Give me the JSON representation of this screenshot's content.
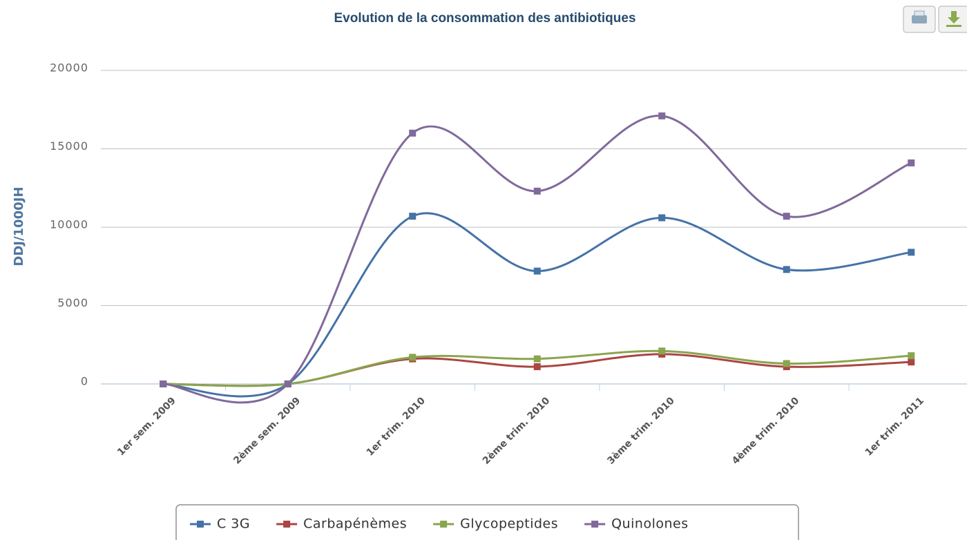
{
  "chart_data": {
    "type": "line",
    "title": "Evolution de la consommation des antibiotiques",
    "y_label": "DDJ/1000JH",
    "categories": [
      "1er sem. 2009",
      "2ème sem. 2009",
      "1er trim. 2010",
      "2ème trim. 2010",
      "3ème trim. 2010",
      "4ème trim. 2010",
      "1er trim. 2011"
    ],
    "series": [
      {
        "name": "C 3G",
        "color": "#4572A7",
        "values": [
          0,
          0,
          10700,
          7200,
          10600,
          7300,
          8400
        ]
      },
      {
        "name": "Carbapénèmes",
        "color": "#AA4643",
        "values": [
          0,
          0,
          1600,
          1100,
          1900,
          1100,
          1400
        ]
      },
      {
        "name": "Glycopeptides",
        "color": "#89A54E",
        "values": [
          0,
          0,
          1700,
          1600,
          2100,
          1300,
          1800
        ]
      },
      {
        "name": "Quinolones",
        "color": "#80699B",
        "values": [
          0,
          0,
          16000,
          12300,
          17100,
          10700,
          14100
        ]
      }
    ],
    "ylim": [
      0,
      20000
    ],
    "yticks": [
      0,
      5000,
      10000,
      15000,
      20000
    ],
    "grid": true,
    "smooth": true,
    "legend": "bottom"
  }
}
